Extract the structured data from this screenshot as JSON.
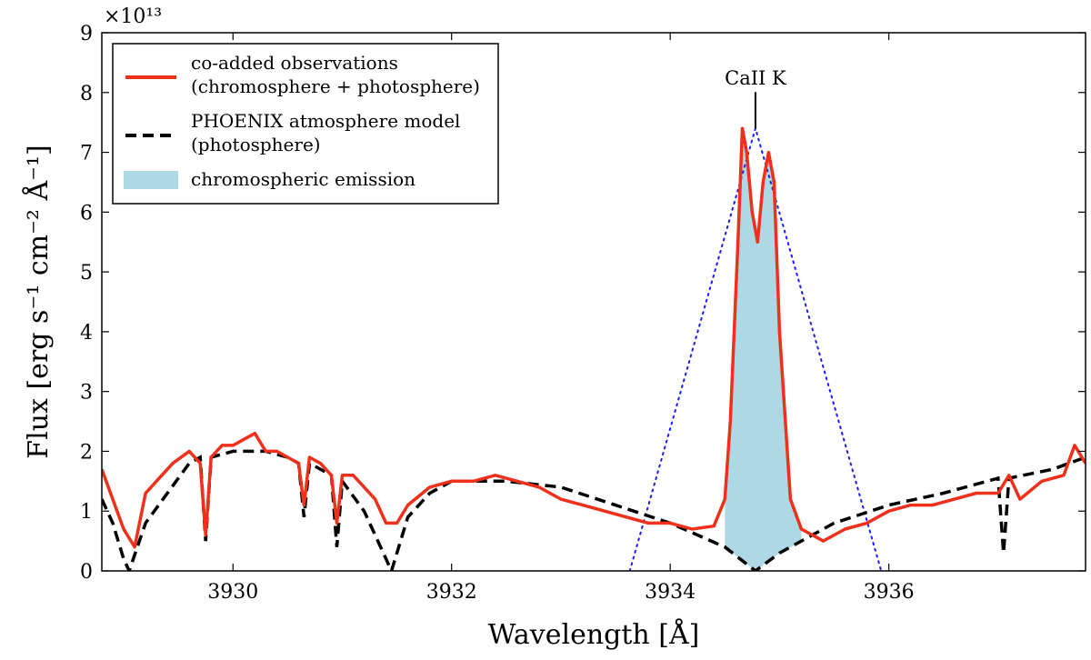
{
  "chart_data": {
    "type": "line",
    "xlabel": "Wavelength [Å]",
    "ylabel": "Flux [erg s⁻¹ cm⁻² Å⁻¹]",
    "y_multiplier": "×10¹³",
    "xlim": [
      3928.8,
      3937.8
    ],
    "ylim": [
      0,
      9
    ],
    "xticks": [
      3930,
      3932,
      3934,
      3936
    ],
    "yticks": [
      0,
      1,
      2,
      3,
      4,
      5,
      6,
      7,
      8,
      9
    ],
    "grid": false,
    "legend_position": "top-left",
    "colors": {
      "observations": "#f0301a",
      "model": "#000000",
      "emission": "#add8e6",
      "triangle": "#1a1aff"
    },
    "annotation": {
      "text": "CaII K",
      "x": 3934.78,
      "y": 7.4
    },
    "series": [
      {
        "name": "co-added observations\n(chromosphere + photosphere)",
        "style": "solid",
        "x": [
          3928.8,
          3928.9,
          3929.0,
          3929.1,
          3929.2,
          3929.3,
          3929.45,
          3929.6,
          3929.7,
          3929.75,
          3929.8,
          3929.9,
          3930.0,
          3930.1,
          3930.2,
          3930.3,
          3930.4,
          3930.5,
          3930.6,
          3930.65,
          3930.7,
          3930.8,
          3930.9,
          3930.95,
          3931.0,
          3931.1,
          3931.2,
          3931.3,
          3931.4,
          3931.5,
          3931.6,
          3931.8,
          3932.0,
          3932.2,
          3932.4,
          3932.6,
          3932.8,
          3933.0,
          3933.2,
          3933.4,
          3933.6,
          3933.8,
          3934.0,
          3934.2,
          3934.4,
          3934.5,
          3934.55,
          3934.62,
          3934.66,
          3934.7,
          3934.75,
          3934.8,
          3934.85,
          3934.9,
          3934.95,
          3935.0,
          3935.1,
          3935.2,
          3935.4,
          3935.6,
          3935.8,
          3936.0,
          3936.2,
          3936.4,
          3936.6,
          3936.8,
          3937.0,
          3937.1,
          3937.2,
          3937.4,
          3937.6,
          3937.7,
          3937.8
        ],
        "values": [
          1.7,
          1.2,
          0.7,
          0.4,
          1.3,
          1.5,
          1.8,
          2.0,
          1.8,
          0.6,
          1.9,
          2.1,
          2.1,
          2.2,
          2.3,
          2.0,
          2.0,
          1.9,
          1.8,
          1.1,
          1.9,
          1.8,
          1.6,
          0.8,
          1.6,
          1.6,
          1.4,
          1.2,
          0.8,
          0.8,
          1.1,
          1.4,
          1.5,
          1.5,
          1.6,
          1.5,
          1.4,
          1.2,
          1.1,
          1.0,
          0.9,
          0.8,
          0.8,
          0.7,
          0.75,
          1.2,
          2.5,
          5.5,
          7.4,
          7.0,
          6.0,
          5.5,
          6.5,
          7.0,
          6.5,
          4.0,
          1.2,
          0.7,
          0.5,
          0.7,
          0.8,
          1.0,
          1.1,
          1.1,
          1.2,
          1.3,
          1.3,
          1.6,
          1.2,
          1.5,
          1.6,
          2.1,
          1.8
        ]
      },
      {
        "name": "PHOENIX atmosphere model\n(photosphere)",
        "style": "dashed",
        "x": [
          3928.8,
          3928.9,
          3929.0,
          3929.05,
          3929.2,
          3929.4,
          3929.6,
          3929.7,
          3929.75,
          3929.8,
          3930.0,
          3930.3,
          3930.5,
          3930.6,
          3930.65,
          3930.7,
          3930.9,
          3930.95,
          3931.0,
          3931.2,
          3931.35,
          3931.45,
          3931.6,
          3931.8,
          3932.0,
          3932.5,
          3933.0,
          3933.5,
          3934.0,
          3934.5,
          3934.78,
          3935.0,
          3935.5,
          3936.0,
          3936.5,
          3937.0,
          3937.05,
          3937.1,
          3937.5,
          3937.8
        ],
        "values": [
          1.2,
          0.8,
          0.2,
          0.0,
          0.8,
          1.3,
          1.8,
          1.9,
          0.5,
          1.9,
          2.0,
          2.0,
          1.9,
          1.8,
          0.9,
          1.8,
          1.6,
          0.4,
          1.5,
          1.0,
          0.4,
          0.0,
          0.9,
          1.3,
          1.5,
          1.5,
          1.4,
          1.1,
          0.8,
          0.4,
          0.0,
          0.3,
          0.8,
          1.1,
          1.3,
          1.55,
          0.3,
          1.55,
          1.7,
          1.9
        ]
      },
      {
        "name": "chromospheric emission",
        "style": "fill"
      }
    ]
  }
}
